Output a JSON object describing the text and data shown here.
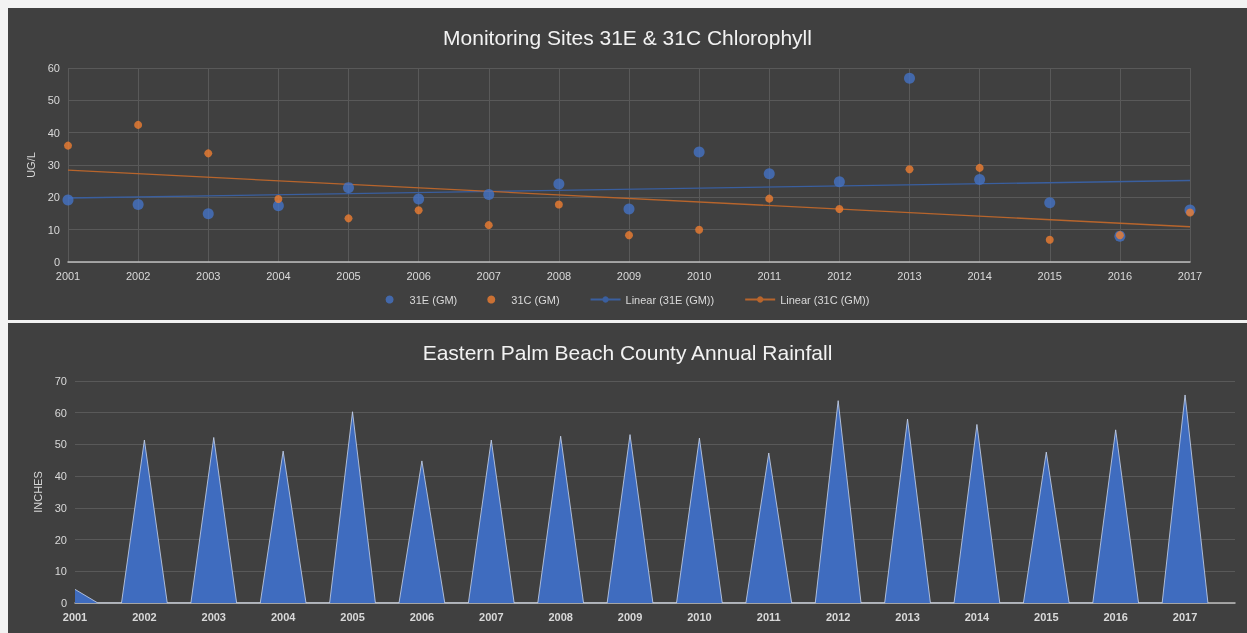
{
  "chart_data": [
    {
      "type": "scatter",
      "title": "Monitoring Sites 31E & 31C Chlorophyll",
      "ylabel": "UG/L",
      "x": [
        2001,
        2002,
        2003,
        2004,
        2005,
        2006,
        2007,
        2008,
        2009,
        2010,
        2011,
        2012,
        2013,
        2014,
        2015,
        2016,
        2017
      ],
      "series": [
        {
          "name": "31E (GM)",
          "color": "#4472c4",
          "values": [
            19.2,
            17.8,
            14.9,
            17.4,
            23,
            19.5,
            20.9,
            24.1,
            16.4,
            34,
            27.3,
            24.8,
            56.8,
            25.5,
            18.3,
            8,
            16.1
          ]
        },
        {
          "name": "31C (GM)",
          "color": "#ed7d31",
          "values": [
            36,
            42.4,
            33.6,
            19.5,
            13.5,
            16,
            11.4,
            17.8,
            8.3,
            10,
            19.6,
            16.4,
            28.7,
            29.1,
            6.9,
            8.3,
            15.3
          ]
        },
        {
          "name": "Linear (31E (GM))",
          "type": "line",
          "marker": "none",
          "color": "#3a5f9f",
          "x": [
            2001,
            2017
          ],
          "values": [
            19.8,
            25.2
          ]
        },
        {
          "name": "Linear (31C (GM))",
          "type": "line",
          "marker": "none",
          "color": "#b8652c",
          "x": [
            2001,
            2017
          ],
          "values": [
            28.4,
            10.9
          ]
        }
      ],
      "xlim": [
        2001,
        2017
      ],
      "xticks": [
        2001,
        2002,
        2003,
        2004,
        2005,
        2006,
        2007,
        2008,
        2009,
        2010,
        2011,
        2012,
        2013,
        2014,
        2015,
        2016,
        2017
      ],
      "ylim": [
        0,
        60
      ],
      "yticks": [
        0,
        10,
        20,
        30,
        40,
        50,
        60
      ],
      "grid": true,
      "legend": "bottom",
      "marker": "circle"
    },
    {
      "type": "area",
      "title": "Eastern Palm Beach County Annual Rainfall",
      "ylabel": "INCHES",
      "series": [
        {
          "color": "#3f6cbf",
          "x": [
            2001,
            2001.33,
            2001.67,
            2002,
            2002.33,
            2002.67,
            2003,
            2003.33,
            2003.67,
            2004,
            2004.33,
            2004.67,
            2005,
            2005.33,
            2005.67,
            2006,
            2006.33,
            2006.67,
            2007,
            2007.33,
            2007.67,
            2008,
            2008.33,
            2008.67,
            2009,
            2009.33,
            2009.67,
            2010,
            2010.33,
            2010.67,
            2011,
            2011.33,
            2011.67,
            2012,
            2012.33,
            2012.67,
            2013,
            2013.33,
            2013.67,
            2014,
            2014.33,
            2014.67,
            2015,
            2015.33,
            2015.67,
            2016,
            2016.33,
            2016.67,
            2017,
            2017.33
          ],
          "values": [
            4.3,
            0,
            0,
            51.4,
            0,
            0,
            52.2,
            0,
            0,
            47.9,
            0,
            0,
            60.3,
            0,
            0,
            44.8,
            0,
            0,
            51.4,
            0,
            0,
            52.6,
            0,
            0,
            53.1,
            0,
            0,
            52,
            0,
            0,
            47.3,
            0,
            0,
            63.8,
            0,
            0,
            58,
            0,
            0,
            56.3,
            0,
            0,
            47.6,
            0,
            0,
            54.6,
            0,
            0,
            65.6,
            0
          ]
        }
      ],
      "xlim": [
        2001,
        2017.72
      ],
      "xticks": [
        2001,
        2002,
        2003,
        2004,
        2005,
        2006,
        2007,
        2008,
        2009,
        2010,
        2011,
        2012,
        2013,
        2014,
        2015,
        2016,
        2017
      ],
      "ylim": [
        0,
        70
      ],
      "yticks": [
        0,
        10,
        20,
        30,
        40,
        50,
        60,
        70
      ],
      "grid": "y"
    }
  ]
}
